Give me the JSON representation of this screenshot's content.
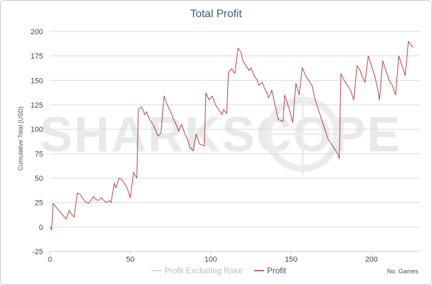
{
  "chart_data": {
    "type": "line",
    "title": "Total Profit",
    "ylabel": "Cumulative Total (USD)",
    "xlabel": "No. Games",
    "xlim": [
      0,
      230
    ],
    "ylim": [
      -25,
      200
    ],
    "x_ticks": [
      0,
      50,
      100,
      150,
      200
    ],
    "y_ticks": [
      -25,
      0,
      25,
      50,
      75,
      100,
      125,
      150,
      175,
      200
    ],
    "grid": "horizontal",
    "legend": "bottom",
    "watermark": "SHARKSCOPE",
    "series": [
      {
        "name": "Profit Excluding Rake",
        "color": "#cccccc",
        "x": [],
        "values": []
      },
      {
        "name": "Profit",
        "color": "#b04040",
        "x": [
          0,
          1,
          2,
          4,
          6,
          8,
          10,
          12,
          13,
          15,
          17,
          19,
          20,
          22,
          24,
          27,
          28,
          30,
          32,
          33,
          35,
          37,
          38,
          40,
          41,
          43,
          45,
          48,
          49,
          50,
          52,
          54,
          55,
          57,
          59,
          60,
          62,
          64,
          66,
          67,
          69,
          71,
          73,
          75,
          77,
          79,
          80,
          82,
          84,
          86,
          87,
          89,
          91,
          93,
          96,
          97,
          99,
          101,
          103,
          105,
          107,
          108,
          110,
          111,
          113,
          115,
          117,
          119,
          120,
          122,
          124,
          125,
          127,
          129,
          130,
          132,
          134,
          135,
          136,
          138,
          140,
          142,
          145,
          146,
          148,
          149,
          151,
          153,
          155,
          157,
          159,
          161,
          163,
          165,
          167,
          169,
          171,
          173,
          175,
          177,
          179,
          180,
          181,
          183,
          185,
          187,
          189,
          191,
          193,
          194,
          196,
          198,
          200,
          202,
          204,
          205,
          207,
          209,
          211,
          213,
          215,
          217,
          219,
          221,
          223,
          225,
          226
        ],
        "values": [
          0,
          -3,
          24,
          20,
          16,
          12,
          8,
          17,
          14,
          10,
          35,
          33,
          30,
          26,
          24,
          31,
          29,
          27,
          30,
          28,
          25,
          27,
          25,
          45,
          40,
          50,
          48,
          40,
          35,
          30,
          56,
          50,
          120,
          123,
          115,
          118,
          110,
          105,
          98,
          93,
          96,
          134,
          125,
          118,
          110,
          103,
          98,
          105,
          95,
          88,
          82,
          78,
          95,
          85,
          83,
          137,
          130,
          134,
          125,
          120,
          115,
          120,
          116,
          158,
          162,
          157,
          183,
          178,
          170,
          165,
          160,
          163,
          155,
          150,
          145,
          148,
          140,
          137,
          132,
          140,
          125,
          110,
          108,
          135,
          125,
          120,
          107,
          147,
          135,
          163,
          155,
          150,
          145,
          130,
          120,
          110,
          100,
          90,
          85,
          80,
          75,
          70,
          157,
          150,
          145,
          140,
          130,
          165,
          160,
          155,
          148,
          175,
          165,
          155,
          140,
          130,
          170,
          160,
          150,
          145,
          135,
          175,
          165,
          155,
          190,
          185,
          184
        ]
      }
    ]
  }
}
